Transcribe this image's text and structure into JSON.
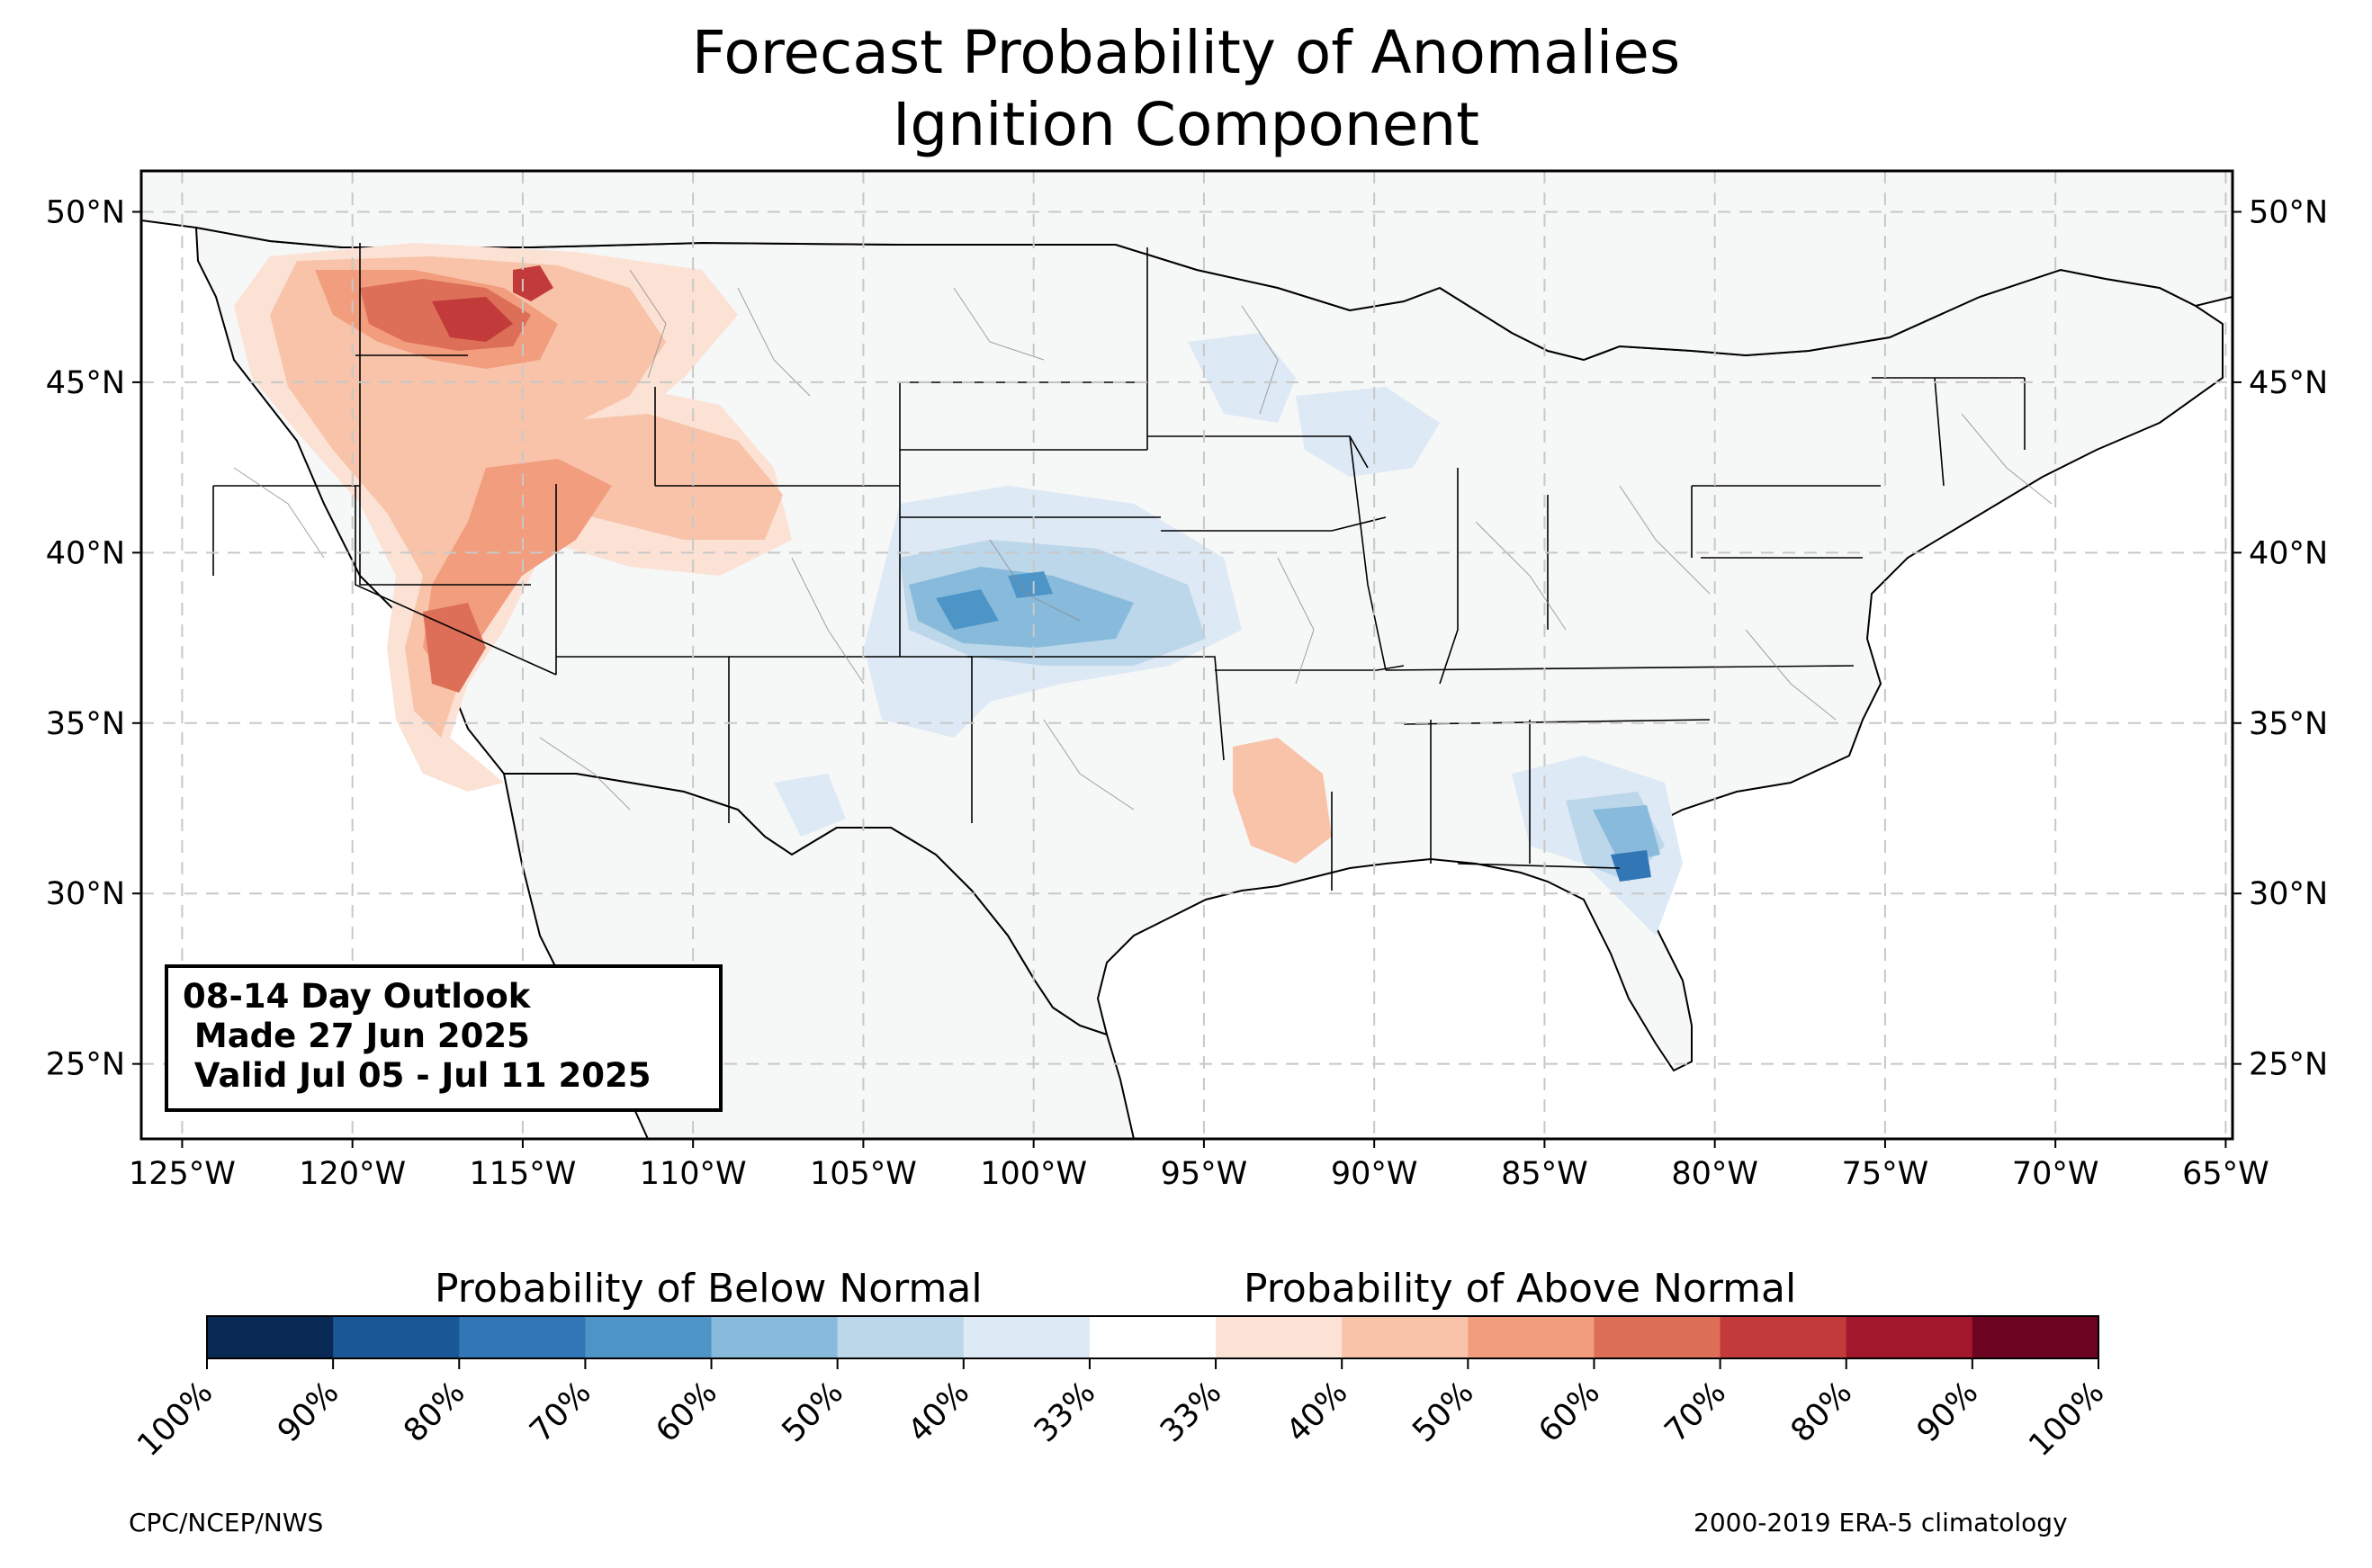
{
  "title": {
    "line1": "Forecast Probability of Anomalies",
    "line2": "Ignition Component"
  },
  "outlook": {
    "line1": "08-14 Day Outlook",
    "line2": " Made 27 Jun 2025",
    "line3": " Valid Jul 05 - Jul 11 2025"
  },
  "axes": {
    "lon_labels": [
      "125°W",
      "120°W",
      "115°W",
      "110°W",
      "105°W",
      "100°W",
      "95°W",
      "90°W",
      "85°W",
      "80°W",
      "75°W",
      "70°W",
      "65°W"
    ],
    "lat_labels": [
      "50°N",
      "45°N",
      "40°N",
      "35°N",
      "30°N",
      "25°N"
    ],
    "lon_range": [
      -126.2,
      -64.8
    ],
    "lat_range": [
      22.8,
      51.2
    ]
  },
  "colorbar": {
    "below_label": "Probability of Below Normal",
    "above_label": "Probability of Above Normal",
    "tick_labels": [
      "100%",
      "90%",
      "80%",
      "70%",
      "60%",
      "50%",
      "40%",
      "33%",
      "33%",
      "40%",
      "50%",
      "60%",
      "70%",
      "80%",
      "90%",
      "100%"
    ],
    "colors": [
      "#082a54",
      "#1a5796",
      "#3376b5",
      "#4d95c7",
      "#88bbdb",
      "#bcd6ea",
      "#dde9f4",
      "#ffffff",
      "#fbe2d4",
      "#f8c3a8",
      "#f19d7e",
      "#dd6e57",
      "#c23b3a",
      "#a2172b",
      "#6b0321"
    ]
  },
  "footer": {
    "left": "CPC/NCEP/NWS",
    "right": "2000-2019 ERA-5 climatology"
  },
  "map_colors": {
    "land": "#f6f7f7",
    "frame": "#000000"
  }
}
